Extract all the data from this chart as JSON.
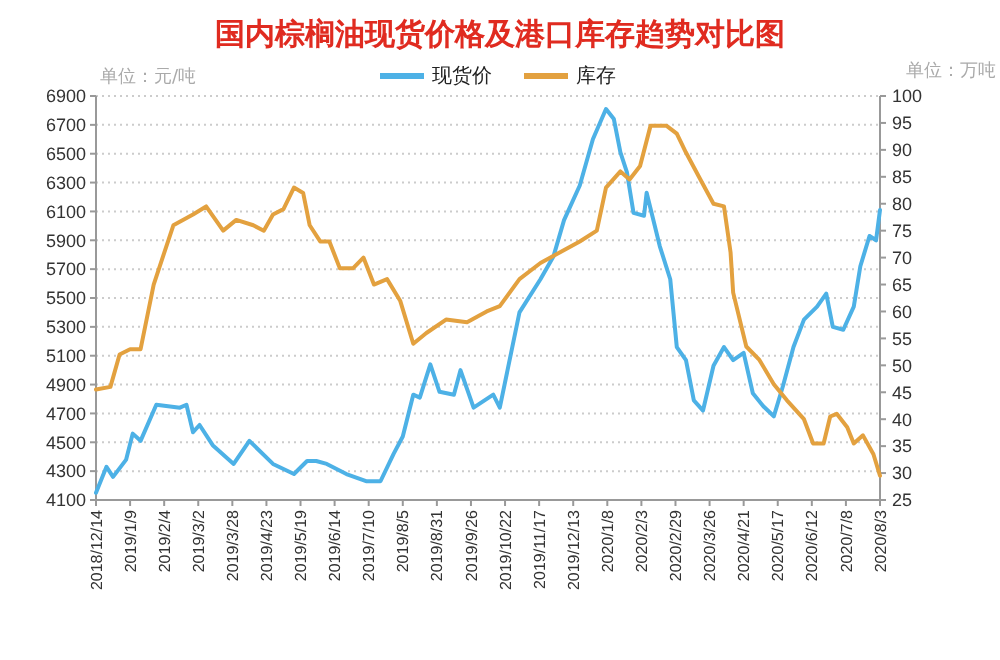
{
  "chart_data": {
    "type": "line",
    "title": "国内棕榈油现货价格及港口库存趋势对比图",
    "ylabel": "单位：元/吨",
    "y2label": "单位：万吨",
    "legend": "top",
    "grid": "y",
    "line_style": "solid",
    "xlim": [
      "2018-12-14",
      "2020-08-03"
    ],
    "xticks": [
      {
        "value": "2018-12-14",
        "label": "2018/12/14"
      },
      {
        "value": "2019-01-09",
        "label": "2019/1/9"
      },
      {
        "value": "2019-02-04",
        "label": "2019/2/4"
      },
      {
        "value": "2019-03-02",
        "label": "2019/3/2"
      },
      {
        "value": "2019-03-28",
        "label": "2019/3/28"
      },
      {
        "value": "2019-04-23",
        "label": "2019/4/23"
      },
      {
        "value": "2019-05-19",
        "label": "2019/5/19"
      },
      {
        "value": "2019-06-14",
        "label": "2019/6/14"
      },
      {
        "value": "2019-07-10",
        "label": "2019/7/10"
      },
      {
        "value": "2019-08-05",
        "label": "2019/8/5"
      },
      {
        "value": "2019-08-31",
        "label": "2019/8/31"
      },
      {
        "value": "2019-09-26",
        "label": "2019/9/26"
      },
      {
        "value": "2019-10-22",
        "label": "2019/10/22"
      },
      {
        "value": "2019-11-17",
        "label": "2019/11/17"
      },
      {
        "value": "2019-12-13",
        "label": "2019/12/13"
      },
      {
        "value": "2020-01-08",
        "label": "2020/1/8"
      },
      {
        "value": "2020-02-03",
        "label": "2020/2/3"
      },
      {
        "value": "2020-02-29",
        "label": "2020/2/29"
      },
      {
        "value": "2020-03-26",
        "label": "2020/3/26"
      },
      {
        "value": "2020-04-21",
        "label": "2020/4/21"
      },
      {
        "value": "2020-05-17",
        "label": "2020/5/17"
      },
      {
        "value": "2020-06-12",
        "label": "2020/6/12"
      },
      {
        "value": "2020-07-08",
        "label": "2020/7/8"
      },
      {
        "value": "2020-08-03",
        "label": "2020/8/3"
      }
    ],
    "ylim": [
      4100,
      6900
    ],
    "yticks": [
      4100,
      4300,
      4500,
      4700,
      4900,
      5100,
      5300,
      5500,
      5700,
      5900,
      6100,
      6300,
      6500,
      6700,
      6900
    ],
    "y2lim": [
      25,
      100
    ],
    "y2ticks": [
      25,
      30,
      35,
      40,
      45,
      50,
      55,
      60,
      65,
      70,
      75,
      80,
      85,
      90,
      95,
      100
    ],
    "series": [
      {
        "name": "现货价",
        "color": "#4db1e6",
        "x": [
          "2018-12-14",
          "2018-12-22",
          "2018-12-27",
          "2019-01-06",
          "2019-01-11",
          "2019-01-17",
          "2019-01-29",
          "2019-02-16",
          "2019-02-21",
          "2019-02-26",
          "2019-03-03",
          "2019-03-13",
          "2019-03-29",
          "2019-04-10",
          "2019-04-28",
          "2019-05-14",
          "2019-05-24",
          "2019-05-31",
          "2019-06-08",
          "2019-06-23",
          "2019-07-08",
          "2019-07-19",
          "2019-07-29",
          "2019-08-05",
          "2019-08-13",
          "2019-08-18",
          "2019-08-26",
          "2019-09-02",
          "2019-09-13",
          "2019-09-18",
          "2019-09-28",
          "2019-10-13",
          "2019-10-18",
          "2019-11-02",
          "2019-11-18",
          "2019-11-28",
          "2019-12-06",
          "2019-12-18",
          "2019-12-28",
          "2020-01-07",
          "2020-01-13",
          "2020-01-18",
          "2020-01-23",
          "2020-01-28",
          "2020-02-05",
          "2020-02-07",
          "2020-02-17",
          "2020-02-25",
          "2020-03-01",
          "2020-03-08",
          "2020-03-14",
          "2020-03-21",
          "2020-03-29",
          "2020-04-06",
          "2020-04-13",
          "2020-04-21",
          "2020-04-28",
          "2020-05-06",
          "2020-05-14",
          "2020-05-21",
          "2020-05-29",
          "2020-06-06",
          "2020-06-16",
          "2020-06-23",
          "2020-06-28",
          "2020-07-06",
          "2020-07-14",
          "2020-07-19",
          "2020-07-26",
          "2020-07-31",
          "2020-08-03"
        ],
        "values": [
          4150,
          4330,
          4260,
          4380,
          4560,
          4510,
          4760,
          4740,
          4760,
          4570,
          4620,
          4480,
          4350,
          4510,
          4350,
          4280,
          4370,
          4370,
          4350,
          4280,
          4230,
          4230,
          4420,
          4540,
          4830,
          4810,
          5040,
          4850,
          4830,
          5000,
          4740,
          4830,
          4740,
          5400,
          5630,
          5790,
          6040,
          6280,
          6600,
          6810,
          6740,
          6510,
          6370,
          6090,
          6070,
          6230,
          5860,
          5630,
          5160,
          5070,
          4790,
          4720,
          5030,
          5160,
          5070,
          5120,
          4840,
          4750,
          4680,
          4890,
          5160,
          5350,
          5440,
          5530,
          5300,
          5280,
          5440,
          5720,
          5930,
          5900,
          6110
        ]
      },
      {
        "name": "库存",
        "color": "#e3a13f",
        "axis": "y2",
        "x": [
          "2018-12-14",
          "2018-12-25",
          "2019-01-01",
          "2019-01-09",
          "2019-01-17",
          "2019-01-27",
          "2019-02-11",
          "2019-02-26",
          "2019-03-08",
          "2019-03-21",
          "2019-03-31",
          "2019-04-13",
          "2019-04-21",
          "2019-04-28",
          "2019-05-06",
          "2019-05-14",
          "2019-05-21",
          "2019-05-26",
          "2019-06-03",
          "2019-06-10",
          "2019-06-18",
          "2019-06-28",
          "2019-07-06",
          "2019-07-14",
          "2019-07-24",
          "2019-08-03",
          "2019-08-13",
          "2019-08-23",
          "2019-09-07",
          "2019-09-23",
          "2019-10-08",
          "2019-10-18",
          "2019-11-02",
          "2019-11-18",
          "2019-12-03",
          "2019-12-18",
          "2019-12-31",
          "2020-01-07",
          "2020-01-18",
          "2020-01-25",
          "2020-02-02",
          "2020-02-10",
          "2020-02-22",
          "2020-03-01",
          "2020-03-08",
          "2020-03-19",
          "2020-03-29",
          "2020-04-06",
          "2020-04-11",
          "2020-04-13",
          "2020-04-23",
          "2020-05-03",
          "2020-05-14",
          "2020-05-24",
          "2020-06-06",
          "2020-06-13",
          "2020-06-21",
          "2020-06-26",
          "2020-07-01",
          "2020-07-09",
          "2020-07-14",
          "2020-07-21",
          "2020-07-29",
          "2020-08-03"
        ],
        "values": [
          45.5,
          46,
          52,
          53,
          53,
          65,
          76,
          78,
          79.5,
          75,
          77,
          76,
          75,
          78,
          79,
          83,
          82,
          76,
          73,
          73,
          68,
          68,
          70,
          65,
          66,
          62,
          54,
          56,
          58.5,
          58,
          60,
          61,
          66,
          69,
          71,
          73,
          75,
          83,
          86,
          84.5,
          87,
          94.5,
          94.5,
          93,
          89.5,
          84.5,
          80,
          79.5,
          71,
          63.5,
          53.5,
          51,
          46.5,
          43.5,
          40,
          35.5,
          35.5,
          40.5,
          41,
          38.5,
          35.5,
          37,
          33.5,
          29.5
        ]
      }
    ]
  }
}
